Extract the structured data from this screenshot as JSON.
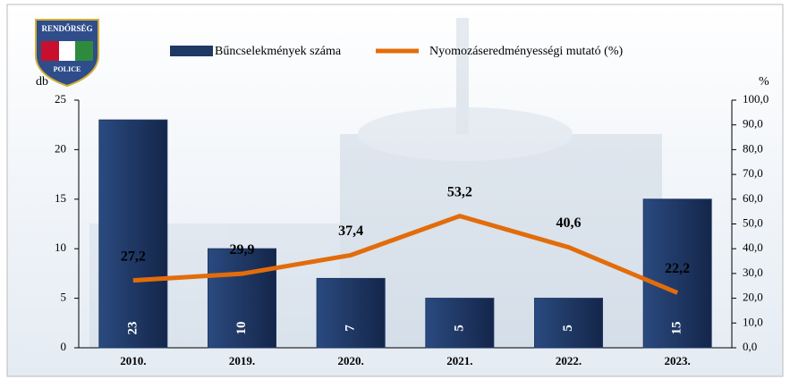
{
  "chart_data": {
    "type": "combo",
    "logo": {
      "top": "RENDŐRSÉG",
      "bottom": "POLICE"
    },
    "ylabel": "db",
    "y2label": "%",
    "categories": [
      "2010.",
      "2019.",
      "2020.",
      "2021.",
      "2022.",
      "2023."
    ],
    "series": [
      {
        "name": "Bűncselekmények száma",
        "type": "bar",
        "color": "#1f3864",
        "values": [
          23,
          10,
          7,
          5,
          5,
          15
        ]
      },
      {
        "name": "Nyomozáseredményességi mutató (%)",
        "type": "line",
        "axis": "y2",
        "color": "#e36c0a",
        "values": [
          27.2,
          29.9,
          37.4,
          53.2,
          40.6,
          22.2
        ],
        "value_labels": [
          "27,2",
          "29,9",
          "37,4",
          "53,2",
          "40,6",
          "22,2"
        ]
      }
    ],
    "ylim": [
      0,
      25
    ],
    "yticks": [
      0,
      5,
      10,
      15,
      20,
      25
    ],
    "y2lim": [
      0,
      100
    ],
    "y2ticks": [
      {
        "value": 0,
        "label": "0,0"
      },
      {
        "value": 10,
        "label": "10,0"
      },
      {
        "value": 20,
        "label": "20,0"
      },
      {
        "value": 30,
        "label": "30,0"
      },
      {
        "value": 40,
        "label": "40,0"
      },
      {
        "value": 50,
        "label": "50,0"
      },
      {
        "value": 60,
        "label": "60,0"
      },
      {
        "value": 70,
        "label": "70,0"
      },
      {
        "value": 80,
        "label": "80,0"
      },
      {
        "value": 90,
        "label": "90,0"
      },
      {
        "value": 100,
        "label": "100,0"
      }
    ]
  }
}
